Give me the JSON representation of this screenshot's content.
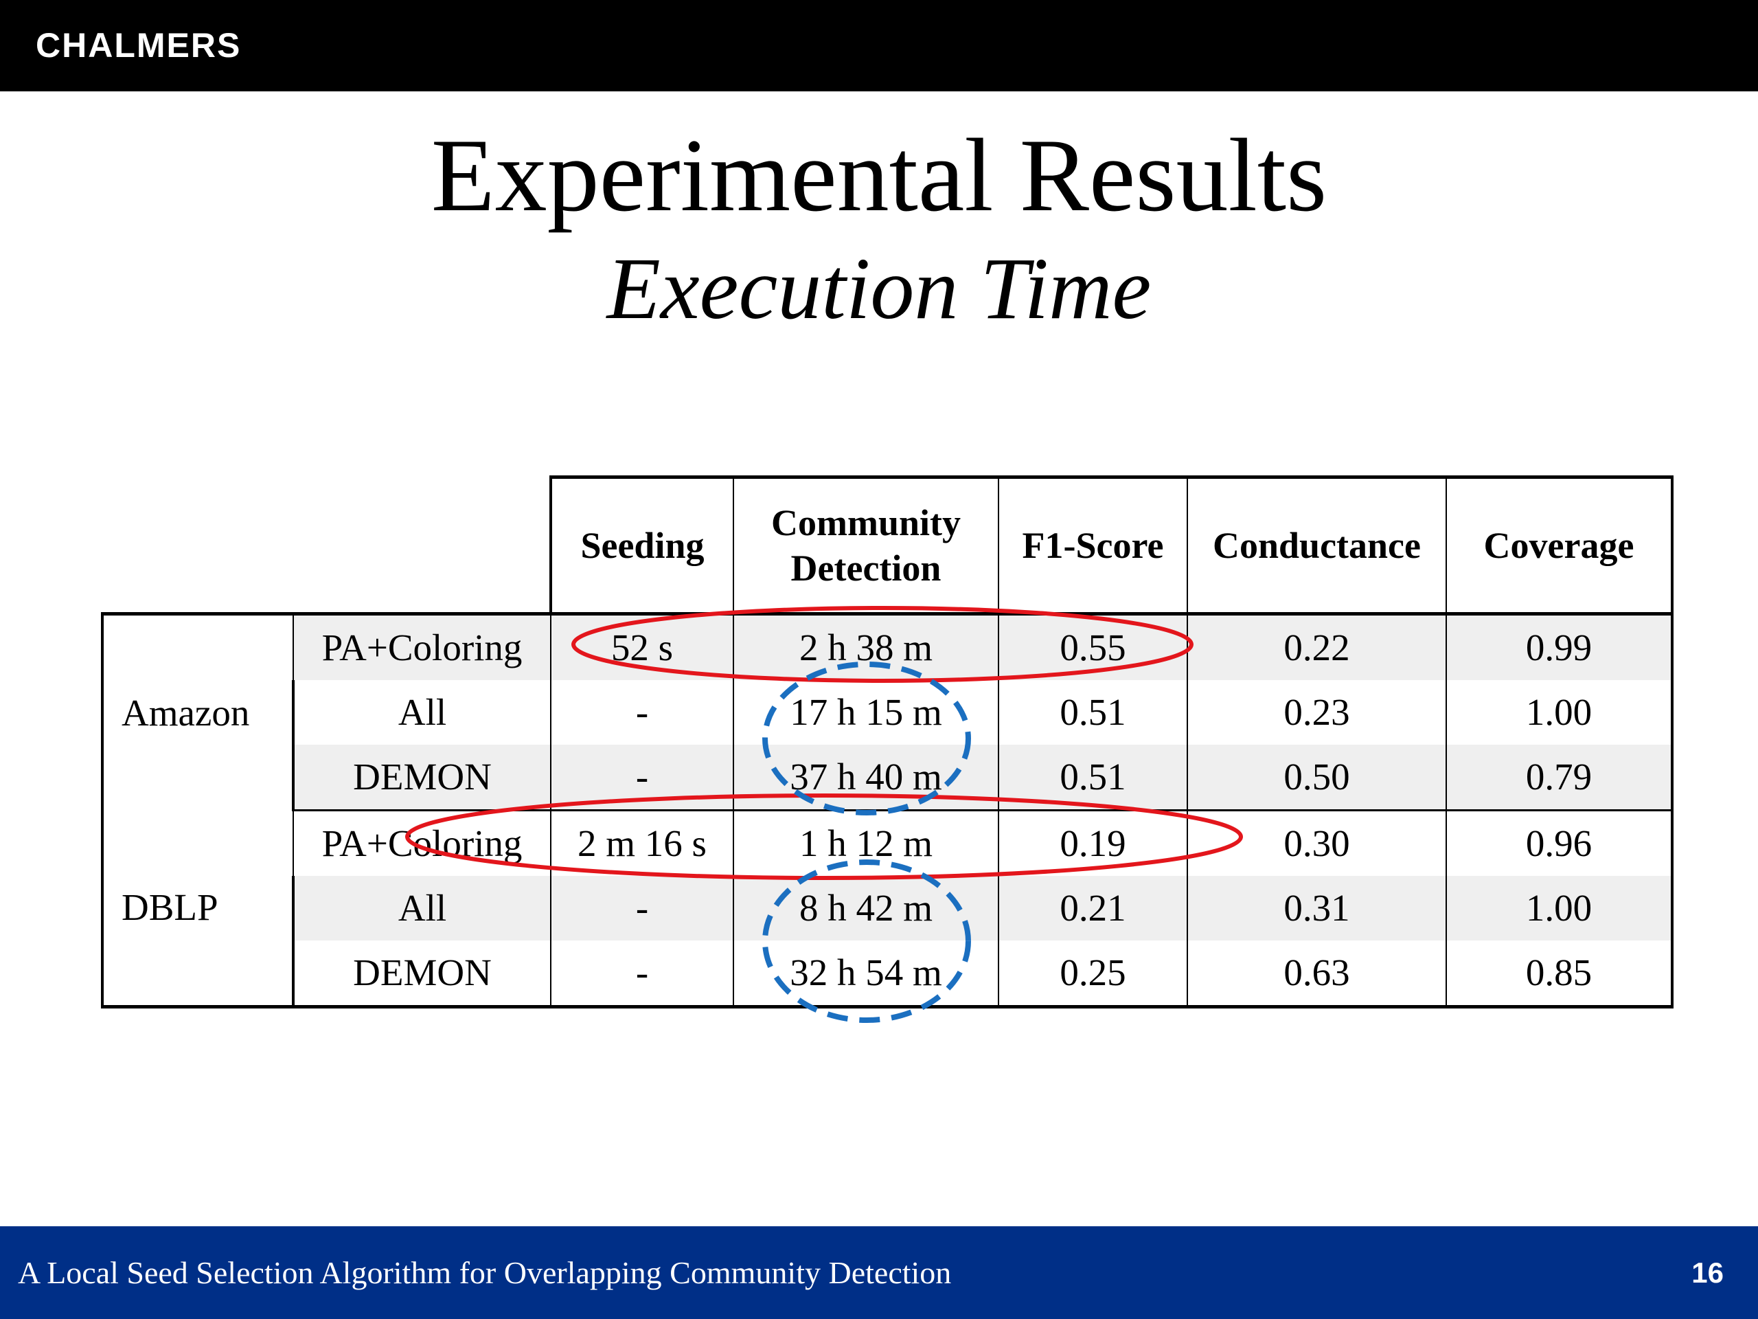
{
  "header": {
    "logo": "CHALMERS"
  },
  "slide": {
    "title": "Experimental Results",
    "subtitle": "Execution Time"
  },
  "table": {
    "columns": [
      "Seeding",
      "Community Detection",
      "F1-Score",
      "Conductance",
      "Coverage"
    ],
    "column_lines": {
      "community_line1": "Community",
      "community_line2": "Detection"
    },
    "groups": [
      {
        "dataset": "Amazon",
        "rows": [
          {
            "method": "PA+Coloring",
            "seeding": "52 s",
            "community_detection": "2 h 38 m",
            "f1": "0.55",
            "conductance": "0.22",
            "coverage": "0.99"
          },
          {
            "method": "All",
            "seeding": "-",
            "community_detection": "17 h 15 m",
            "f1": "0.51",
            "conductance": "0.23",
            "coverage": "1.00"
          },
          {
            "method": "DEMON",
            "seeding": "-",
            "community_detection": "37 h 40 m",
            "f1": "0.51",
            "conductance": "0.50",
            "coverage": "0.79"
          }
        ]
      },
      {
        "dataset": "DBLP",
        "rows": [
          {
            "method": "PA+Coloring",
            "seeding": "2 m 16 s",
            "community_detection": "1 h 12 m",
            "f1": "0.19",
            "conductance": "0.30",
            "coverage": "0.96"
          },
          {
            "method": "All",
            "seeding": "-",
            "community_detection": "8 h 42 m",
            "f1": "0.21",
            "conductance": "0.31",
            "coverage": "1.00"
          },
          {
            "method": "DEMON",
            "seeding": "-",
            "community_detection": "32 h 54 m",
            "f1": "0.25",
            "conductance": "0.63",
            "coverage": "0.85"
          }
        ]
      }
    ]
  },
  "annotations": {
    "red_ellipse_color": "#e3161c",
    "blue_dashed_ellipse_color": "#1b6fc0",
    "shade_color": "#efefef"
  },
  "footer": {
    "text": "A Local Seed Selection Algorithm for Overlapping Community Detection",
    "page_number": "16",
    "background": "#002f87"
  }
}
